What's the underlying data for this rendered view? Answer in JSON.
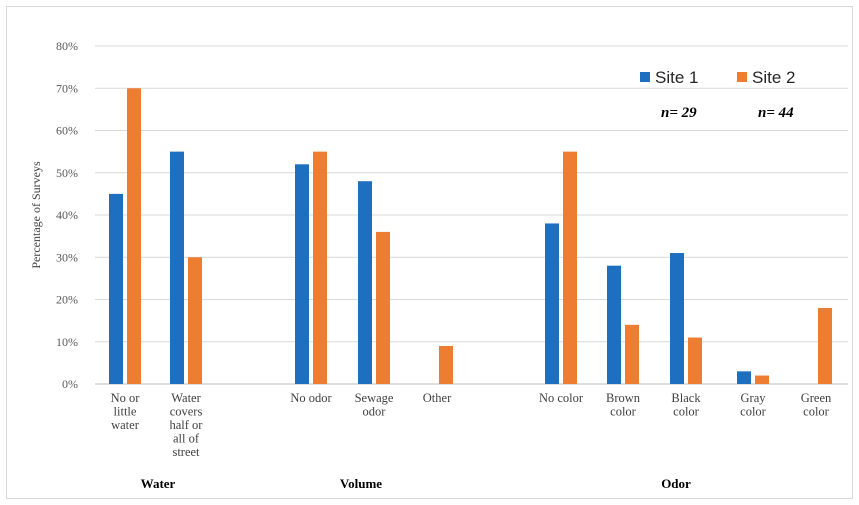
{
  "chart_data": {
    "type": "bar",
    "ylabel": "Percentage of Surveys",
    "ylim": [
      0,
      80
    ],
    "yticks": [
      "0%",
      "10%",
      "20%",
      "30%",
      "40%",
      "50%",
      "60%",
      "70%",
      "80%"
    ],
    "grid": true,
    "legend_position": "top-right",
    "categories": [
      [
        "No or",
        "little",
        "water"
      ],
      [
        "Water",
        "covers",
        "half or",
        "all of",
        "street"
      ],
      [
        "No odor"
      ],
      [
        "Sewage",
        "odor"
      ],
      [
        "Other"
      ],
      [
        "No color"
      ],
      [
        "Brown",
        "color"
      ],
      [
        "Black",
        "color"
      ],
      [
        "Gray",
        "color"
      ],
      [
        "Green",
        "color"
      ]
    ],
    "groups": [
      "Water",
      "Volume",
      "Odor"
    ],
    "series": [
      {
        "name": "Site 1",
        "n_label": "n= 29",
        "color": "#1f6fc0",
        "values": [
          45,
          55,
          52,
          48,
          0,
          38,
          28,
          31,
          3,
          0
        ]
      },
      {
        "name": "Site 2",
        "n_label": "n= 44",
        "color": "#ed7d31",
        "values": [
          70,
          30,
          55,
          36,
          9,
          55,
          14,
          11,
          2,
          18
        ]
      }
    ]
  }
}
